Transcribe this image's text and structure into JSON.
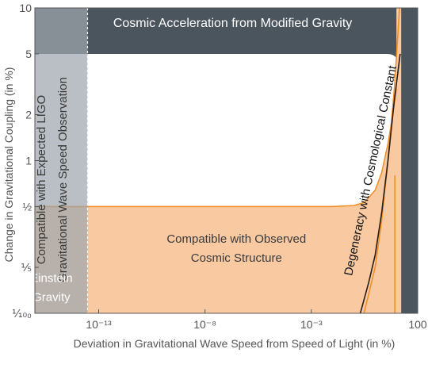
{
  "chart_data": {
    "type": "area",
    "xlabel": "Deviation in Gravitational Wave Speed from Speed of Light (in %)",
    "ylabel": "Change in Gravitational Coupling (in %)",
    "x_scale": "log",
    "y_scale": "log",
    "xlim": [
      1e-16,
      100
    ],
    "ylim": [
      0.1,
      10
    ],
    "x_ticks": [
      {
        "value": 1e-13,
        "label": "10⁻¹³"
      },
      {
        "value": 1e-08,
        "label": "10⁻⁸"
      },
      {
        "value": 0.001,
        "label": "10⁻³"
      },
      {
        "value": 100,
        "label": "100"
      }
    ],
    "y_ticks": [
      {
        "value": 10,
        "label": "10"
      },
      {
        "value": 5,
        "label": "5"
      },
      {
        "value": 2,
        "label": "2"
      },
      {
        "value": 1,
        "label": "1"
      },
      {
        "value": 0.5,
        "label": "½"
      },
      {
        "value": 0.2,
        "label": "⅕"
      },
      {
        "value": 0.1,
        "label": "⅒₀"
      }
    ],
    "regions": [
      {
        "label": "Cosmic Acceleration from Modified Gravity",
        "color": "#4b555e",
        "y_lower_bound": 5,
        "x_upper_bound": 12
      },
      {
        "label_lines": [
          "Compatible with Observed",
          "Cosmic Structure"
        ],
        "color": "#f9c9a2",
        "edge_color": "#f08d23",
        "y_upper_bound": 0.5,
        "x_upper_bound": 10
      },
      {
        "label_lines": [
          "Compatible with  Expected LIGO",
          "Gravitational Wave  Speed  Observation"
        ],
        "color": "#9ea6ad",
        "x_upper_bound": 3e-14
      },
      {
        "label_lines": [
          "Einstein",
          "Gravity"
        ],
        "x_upper_bound": 3e-14,
        "y_upper_bound": 0.5
      }
    ],
    "series": [
      {
        "name": "Degeneracy with Cosmological Constant",
        "color": "#2a1c12",
        "x": [
          0.2,
          0.5,
          1,
          2,
          4,
          8,
          15
        ],
        "y": [
          0.1,
          0.16,
          0.24,
          0.45,
          1.0,
          2.5,
          5.0
        ]
      }
    ],
    "grid": false
  },
  "colors": {
    "dark_region": "#4b555e",
    "gray_region": "#9ea6ad",
    "orange_fill": "#f9c9a2",
    "orange_edge": "#f08d23",
    "degeneracy_line": "#2a1c12",
    "axis_text": "#555555"
  }
}
